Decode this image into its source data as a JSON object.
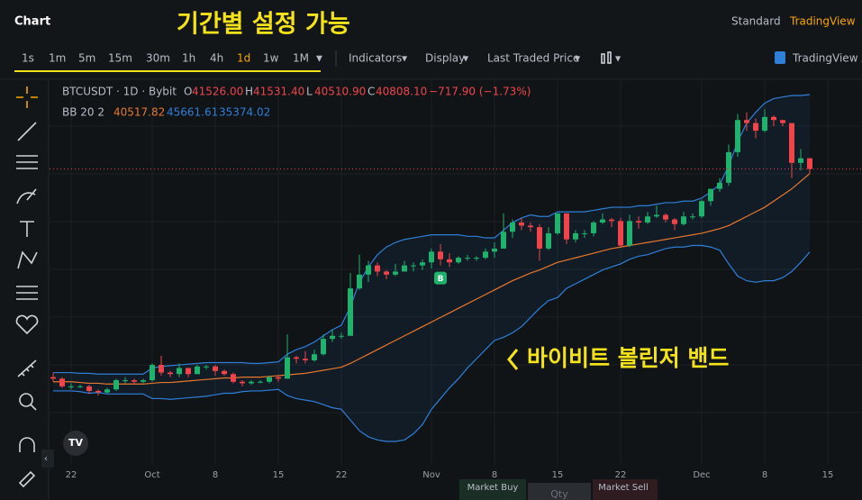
{
  "header": {
    "title": "Chart",
    "annotation": "기간별 설정 가능",
    "view_modes": [
      "Standard",
      "TradingView"
    ]
  },
  "toolbar": {
    "intervals": [
      "1s",
      "1m",
      "5m",
      "15m",
      "30m",
      "1h",
      "4h",
      "1d",
      "1w",
      "1M"
    ],
    "menus": [
      "Indicators",
      "Display",
      "Last Traded Price"
    ],
    "tv_button": "TradingView A"
  },
  "legend": {
    "symbol": "BTCUSDT · 1D · Bybit",
    "ohlc": [
      {
        "key": "O",
        "value": "41526.00"
      },
      {
        "key": "H",
        "value": "41531.40"
      },
      {
        "key": "L",
        "value": "40510.90"
      },
      {
        "key": "C",
        "value": "40808.10"
      }
    ],
    "change": "−717.90 (−1.73%)",
    "bb_label": "BB 20 2",
    "bb_values": [
      "40517.82",
      "45661.61",
      "35374.02"
    ]
  },
  "marker": "B",
  "annotation": "바이비트 볼린저 밴드",
  "order_bar": [
    "Market Buy",
    "Qty",
    "Market Sell"
  ],
  "chart": {
    "type": "candlestick",
    "xticks": [
      {
        "value": 2,
        "label": "22"
      },
      {
        "value": 11,
        "label": "Oct"
      },
      {
        "value": 18,
        "label": "8"
      },
      {
        "value": 25,
        "label": "15"
      },
      {
        "value": 32,
        "label": "22"
      },
      {
        "value": 42,
        "label": "Nov"
      },
      {
        "value": 49,
        "label": "8"
      },
      {
        "value": 56,
        "label": "15"
      },
      {
        "value": 63,
        "label": "22"
      },
      {
        "value": 72,
        "label": "Dec"
      },
      {
        "value": 79,
        "label": "8"
      },
      {
        "value": 86,
        "label": "15"
      }
    ],
    "open": [
      27200,
      27100,
      26600,
      26600,
      26600,
      26300,
      26200,
      26400,
      27000,
      27000,
      26900,
      27000,
      28000,
      27500,
      27400,
      27800,
      27400,
      27900,
      27900,
      27600,
      27400,
      26900,
      26800,
      26900,
      26900,
      27200,
      27100,
      28500,
      28400,
      28300,
      28700,
      29700,
      29900,
      29900,
      33000,
      33900,
      34500,
      34100,
      33900,
      34100,
      34500,
      34500,
      34700,
      35400,
      34900,
      34700,
      35000,
      35000,
      35000,
      35400,
      35600,
      36700,
      37300,
      37100,
      37000,
      35600,
      36600,
      37900,
      36200,
      36600,
      36600,
      37300,
      37500,
      37400,
      35800,
      37400,
      37300,
      37700,
      37800,
      37500,
      37200,
      37700,
      37700,
      38700,
      39500,
      39900,
      41900,
      44000,
      43800,
      43300,
      44200,
      44000,
      43800,
      41200,
      41500
    ],
    "high": [
      27500,
      27200,
      26800,
      26700,
      26700,
      26400,
      26500,
      27100,
      27200,
      27100,
      27100,
      28100,
      28600,
      27600,
      28100,
      27800,
      28000,
      28000,
      28000,
      27700,
      27500,
      27000,
      27000,
      27000,
      27300,
      27300,
      30000,
      28600,
      28900,
      29000,
      30000,
      30300,
      30100,
      34000,
      35200,
      34800,
      34700,
      34200,
      34600,
      34800,
      34700,
      34900,
      35600,
      35900,
      35300,
      35100,
      35200,
      35100,
      35600,
      36000,
      37900,
      37500,
      37600,
      37300,
      37200,
      37000,
      37900,
      37900,
      36800,
      36800,
      37400,
      37900,
      37600,
      37600,
      37800,
      37700,
      38000,
      38400,
      37900,
      37600,
      38000,
      37900,
      38800,
      39500,
      40200,
      42400,
      44400,
      44500,
      44100,
      44700,
      44300,
      44000,
      43800,
      42100,
      41500
    ],
    "low": [
      26900,
      26500,
      26400,
      26500,
      26100,
      26000,
      26100,
      26300,
      26800,
      26700,
      26800,
      26900,
      27300,
      27200,
      27200,
      27200,
      27400,
      27700,
      27300,
      27300,
      26800,
      26600,
      26700,
      26800,
      26800,
      26900,
      27100,
      28100,
      28100,
      28200,
      28600,
      29500,
      29700,
      29900,
      32900,
      33400,
      33800,
      33600,
      33800,
      34100,
      34100,
      34200,
      34300,
      34500,
      34400,
      34600,
      34800,
      34800,
      34900,
      35000,
      35600,
      36300,
      36800,
      36700,
      34800,
      35500,
      36500,
      35900,
      36000,
      36300,
      36400,
      37200,
      37000,
      35700,
      35700,
      36900,
      37200,
      37600,
      37300,
      36800,
      37100,
      37500,
      37600,
      38400,
      39300,
      39700,
      41600,
      43300,
      42800,
      43200,
      43600,
      43600,
      40200,
      40700,
      40500
    ],
    "close": [
      27100,
      26600,
      26600,
      26600,
      26300,
      26200,
      26400,
      27000,
      27000,
      26900,
      27000,
      28000,
      27500,
      27400,
      27800,
      27400,
      27900,
      27900,
      27600,
      27400,
      26900,
      26800,
      26900,
      26900,
      27200,
      27100,
      28500,
      28400,
      28300,
      28700,
      29700,
      29900,
      29900,
      33000,
      33900,
      34500,
      34100,
      33900,
      34100,
      34500,
      34500,
      34700,
      35400,
      34900,
      34700,
      35000,
      35000,
      35000,
      35400,
      35600,
      36700,
      37300,
      37100,
      37000,
      35600,
      36600,
      37900,
      36200,
      36600,
      36600,
      37300,
      37500,
      37400,
      35800,
      37400,
      37300,
      37700,
      37800,
      37500,
      37200,
      37700,
      37700,
      38700,
      39500,
      39900,
      41900,
      44000,
      43800,
      43300,
      44200,
      44000,
      43800,
      41200,
      41500,
      40800
    ],
    "bb_basis": [
      26900,
      26900,
      26900,
      26850,
      26800,
      26800,
      26750,
      26750,
      26750,
      26750,
      26750,
      26800,
      26850,
      26850,
      26900,
      26950,
      27000,
      27050,
      27100,
      27150,
      27150,
      27200,
      27200,
      27200,
      27250,
      27300,
      27350,
      27400,
      27450,
      27550,
      27650,
      27750,
      27850,
      28100,
      28400,
      28700,
      29000,
      29300,
      29600,
      29900,
      30200,
      30500,
      30800,
      31100,
      31400,
      31700,
      32000,
      32300,
      32600,
      32900,
      33200,
      33500,
      33750,
      34000,
      34200,
      34450,
      34700,
      34850,
      35000,
      35150,
      35300,
      35450,
      35600,
      35700,
      35800,
      35900,
      36000,
      36100,
      36200,
      36300,
      36400,
      36500,
      36600,
      36750,
      36900,
      37100,
      37400,
      37700,
      38000,
      38300,
      38700,
      39100,
      39500,
      40000,
      40500
    ],
    "bb_upper": [
      27500,
      27500,
      27500,
      27450,
      27450,
      27400,
      27400,
      27400,
      27400,
      27400,
      27400,
      27800,
      27900,
      27950,
      28000,
      28050,
      28100,
      28150,
      28150,
      28150,
      28150,
      28150,
      28100,
      28100,
      28150,
      28200,
      28700,
      29000,
      29200,
      29500,
      29900,
      30300,
      30600,
      31800,
      33400,
      34400,
      35200,
      35700,
      36000,
      36200,
      36300,
      36400,
      36500,
      36500,
      36500,
      36500,
      36400,
      36400,
      36300,
      36300,
      36800,
      37300,
      37600,
      37800,
      37700,
      37700,
      38000,
      38000,
      38000,
      38000,
      38100,
      38200,
      38300,
      38300,
      38300,
      38400,
      38400,
      38500,
      38600,
      38600,
      38700,
      38700,
      38900,
      39300,
      39800,
      41000,
      42600,
      43800,
      44500,
      45100,
      45400,
      45500,
      45600,
      45600,
      45660
    ],
    "bb_lower": [
      26300,
      26300,
      26300,
      26250,
      26150,
      26200,
      26100,
      26100,
      26100,
      26100,
      26100,
      25800,
      25800,
      25750,
      25800,
      25850,
      25900,
      25950,
      26050,
      26150,
      26150,
      26250,
      26300,
      26300,
      26350,
      26400,
      26000,
      25800,
      25700,
      25600,
      25400,
      25200,
      25100,
      24400,
      23700,
      23300,
      23100,
      23000,
      23000,
      23100,
      23500,
      24100,
      25100,
      25800,
      26500,
      27100,
      27800,
      28400,
      29000,
      29600,
      29800,
      30100,
      30500,
      31100,
      31700,
      32200,
      32400,
      33000,
      33300,
      33600,
      33900,
      34200,
      34400,
      34600,
      34900,
      35100,
      35200,
      35400,
      35600,
      35700,
      35700,
      35800,
      35800,
      35700,
      35500,
      34600,
      33800,
      33500,
      33400,
      33500,
      33500,
      33700,
      34100,
      34700,
      35374
    ],
    "colors": {
      "up": "#20b26c",
      "down": "#ef454a",
      "upper": "#2f7fd8",
      "lower": "#2f7fd8",
      "basis": "#e8772e"
    },
    "marker_index": 43,
    "grid": true
  }
}
